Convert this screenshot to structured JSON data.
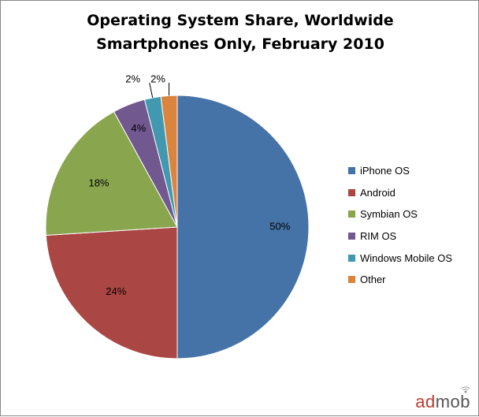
{
  "chart_data": {
    "type": "pie",
    "title": "Operating System Share, Worldwide",
    "subtitle": "Smartphones Only, February 2010",
    "legend_position": "right",
    "slices": [
      {
        "name": "iPhone OS",
        "value": 50,
        "label": "50%",
        "color": "#4572A7"
      },
      {
        "name": "Android",
        "value": 24,
        "label": "24%",
        "color": "#AA4643"
      },
      {
        "name": "Symbian OS",
        "value": 18,
        "label": "18%",
        "color": "#89A54E"
      },
      {
        "name": "RIM OS",
        "value": 4,
        "label": "4%",
        "color": "#71588F"
      },
      {
        "name": "Windows Mobile OS",
        "value": 2,
        "label": "2%",
        "color": "#4198AF"
      },
      {
        "name": "Other",
        "value": 2,
        "label": "2%",
        "color": "#DB843D"
      }
    ]
  },
  "brand": {
    "ad": "ad",
    "mob": "mob"
  }
}
